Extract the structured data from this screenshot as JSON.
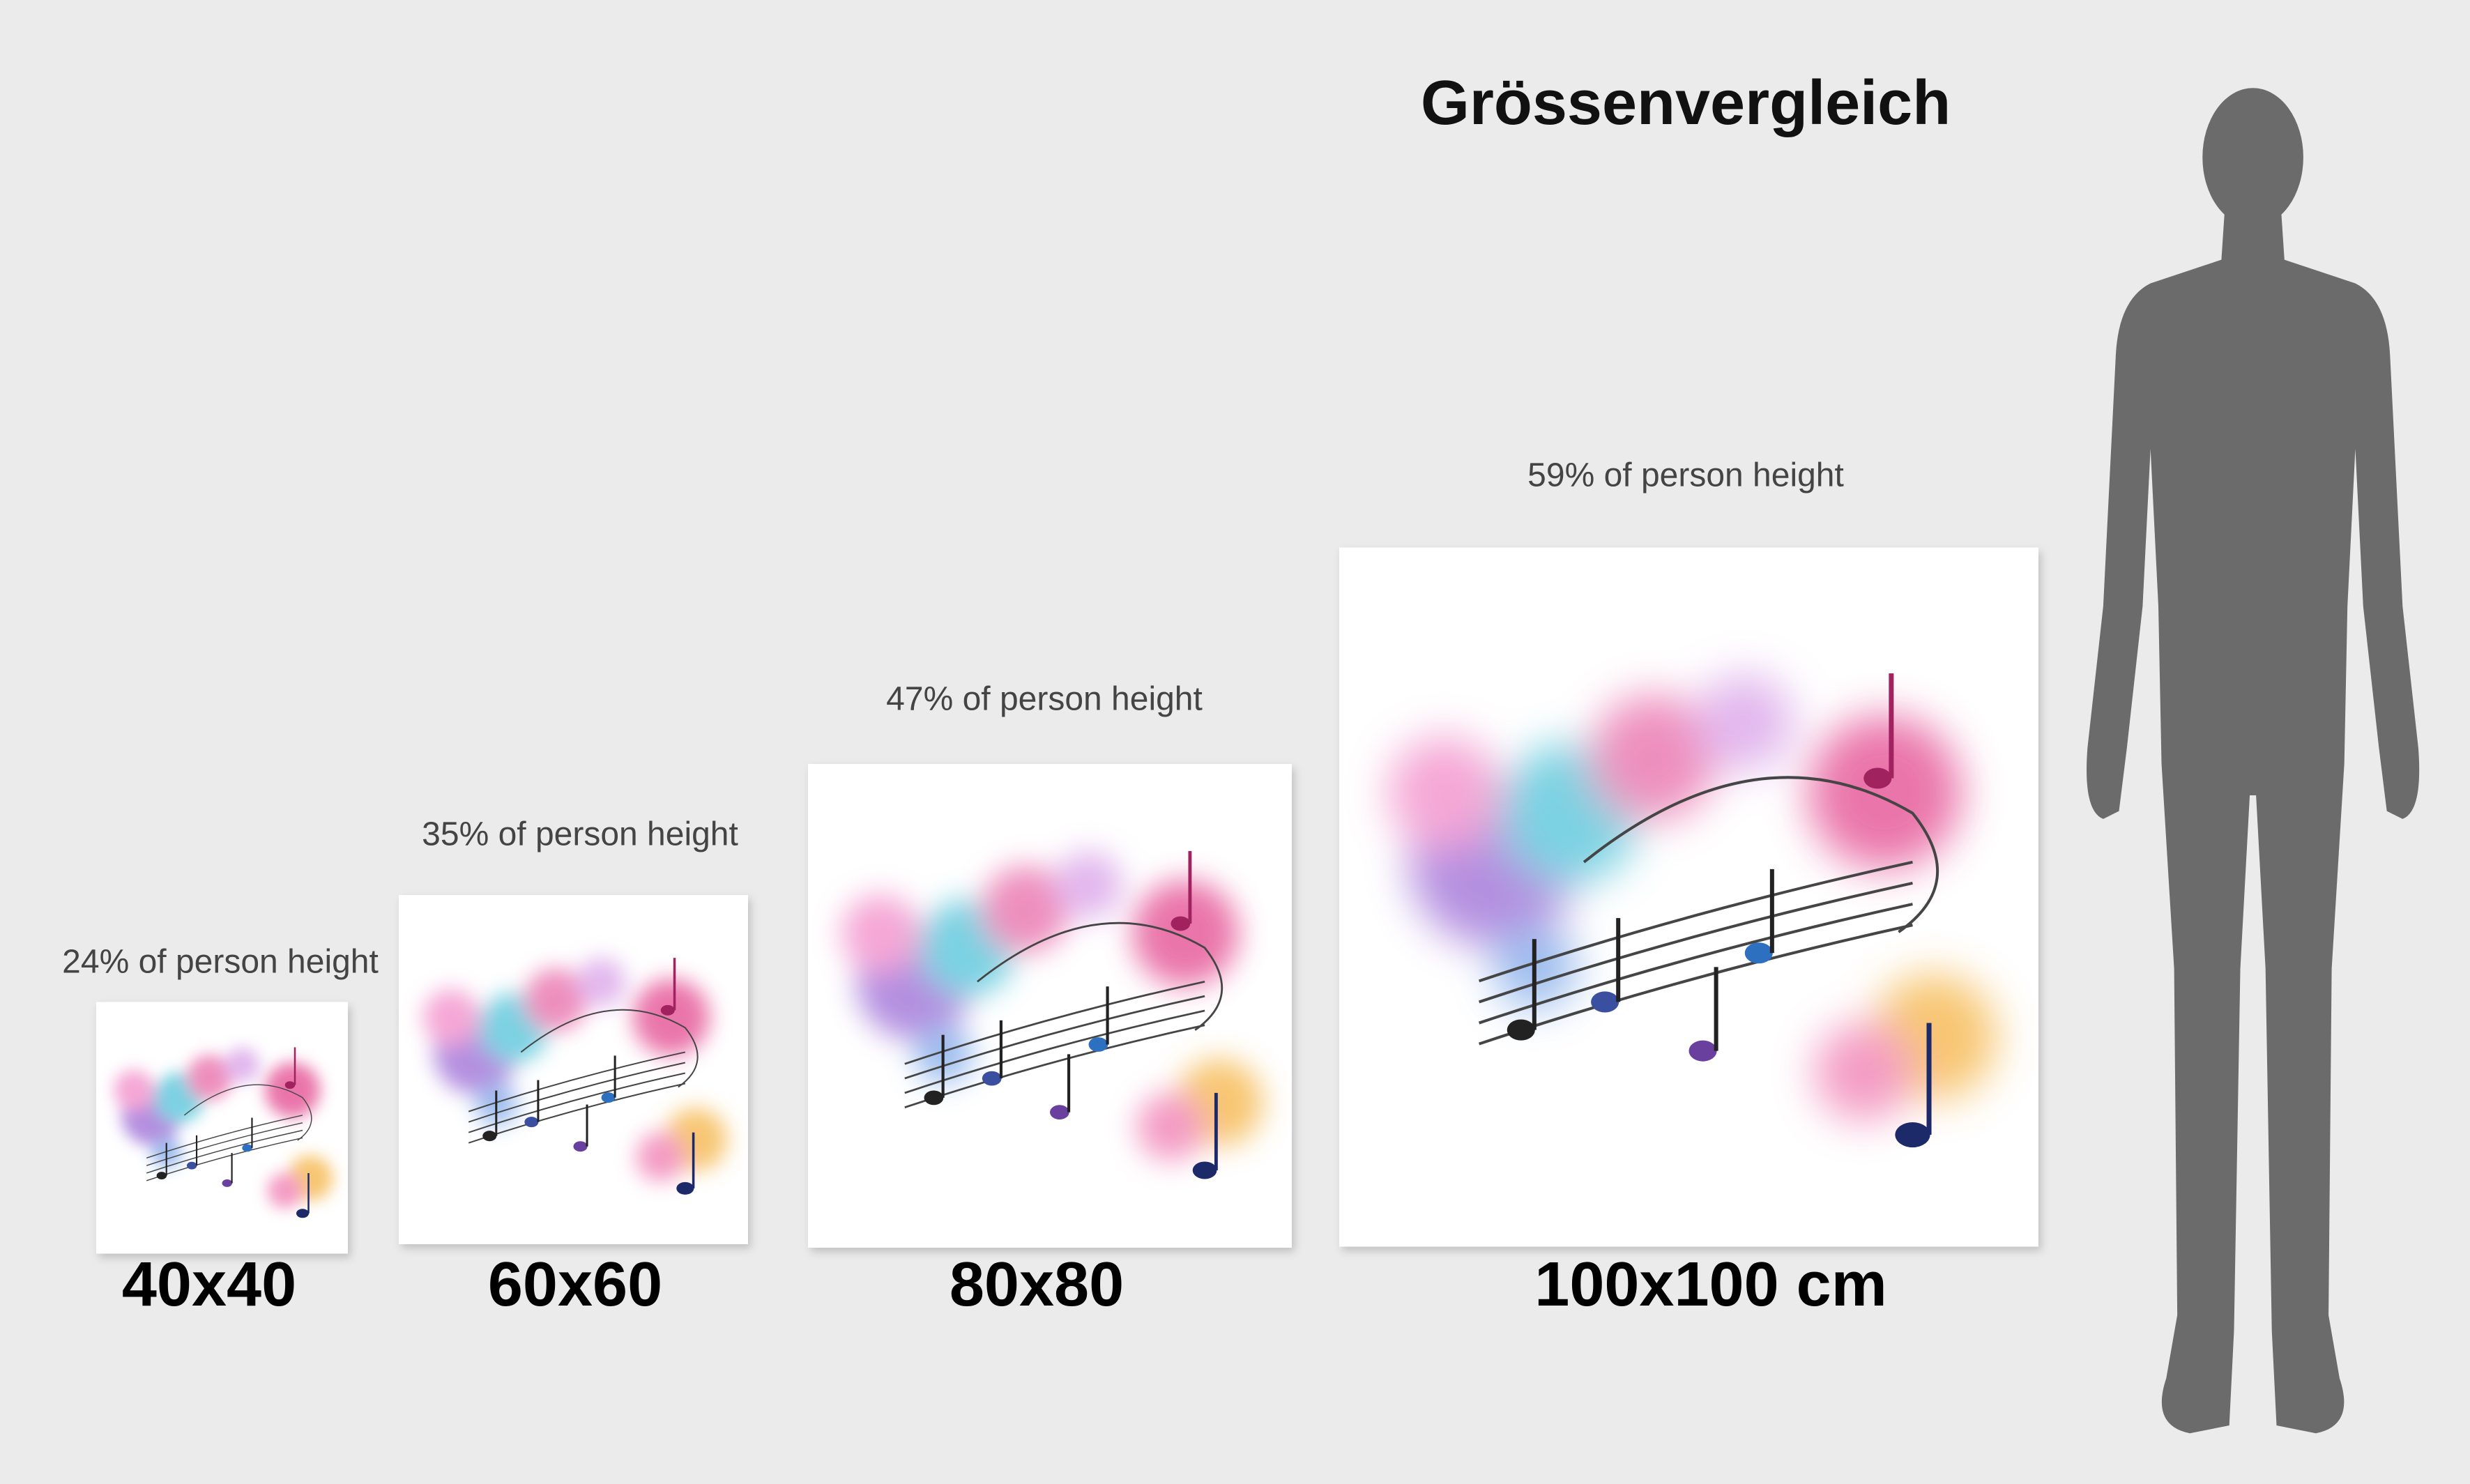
{
  "header": {
    "title": "Grössenvergleich"
  },
  "items": [
    {
      "size": "40x40",
      "caption": "24% of person height"
    },
    {
      "size": "60x60",
      "caption": "35% of person height"
    },
    {
      "size": "80x80",
      "caption": "47% of person height"
    },
    {
      "size": "100x100 cm",
      "caption": "59% of person height"
    }
  ]
}
